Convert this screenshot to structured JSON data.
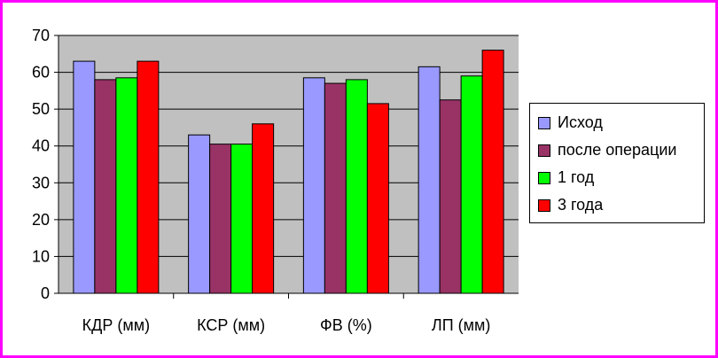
{
  "chart_data": {
    "type": "bar",
    "categories": [
      "КДР (мм)",
      "КСР (мм)",
      "ФВ (%)",
      "ЛП (мм)"
    ],
    "series": [
      {
        "name": "Исход",
        "color": "#9999ff",
        "values": [
          63,
          43,
          58.5,
          61.5
        ]
      },
      {
        "name": "после операции",
        "color": "#993366",
        "values": [
          58,
          40.5,
          57,
          52.5
        ]
      },
      {
        "name": "1 год",
        "color": "#00ff00",
        "values": [
          58.5,
          40.5,
          58,
          59
        ]
      },
      {
        "name": "3 года",
        "color": "#ff0000",
        "values": [
          63,
          46,
          51.5,
          66
        ]
      }
    ],
    "ylim": [
      0,
      70
    ],
    "yticks": [
      0,
      10,
      20,
      30,
      40,
      50,
      60,
      70
    ],
    "grid": true,
    "legend_position": "right",
    "plot_background": "#c0c0c0",
    "frame_color": "#ff00ff"
  }
}
